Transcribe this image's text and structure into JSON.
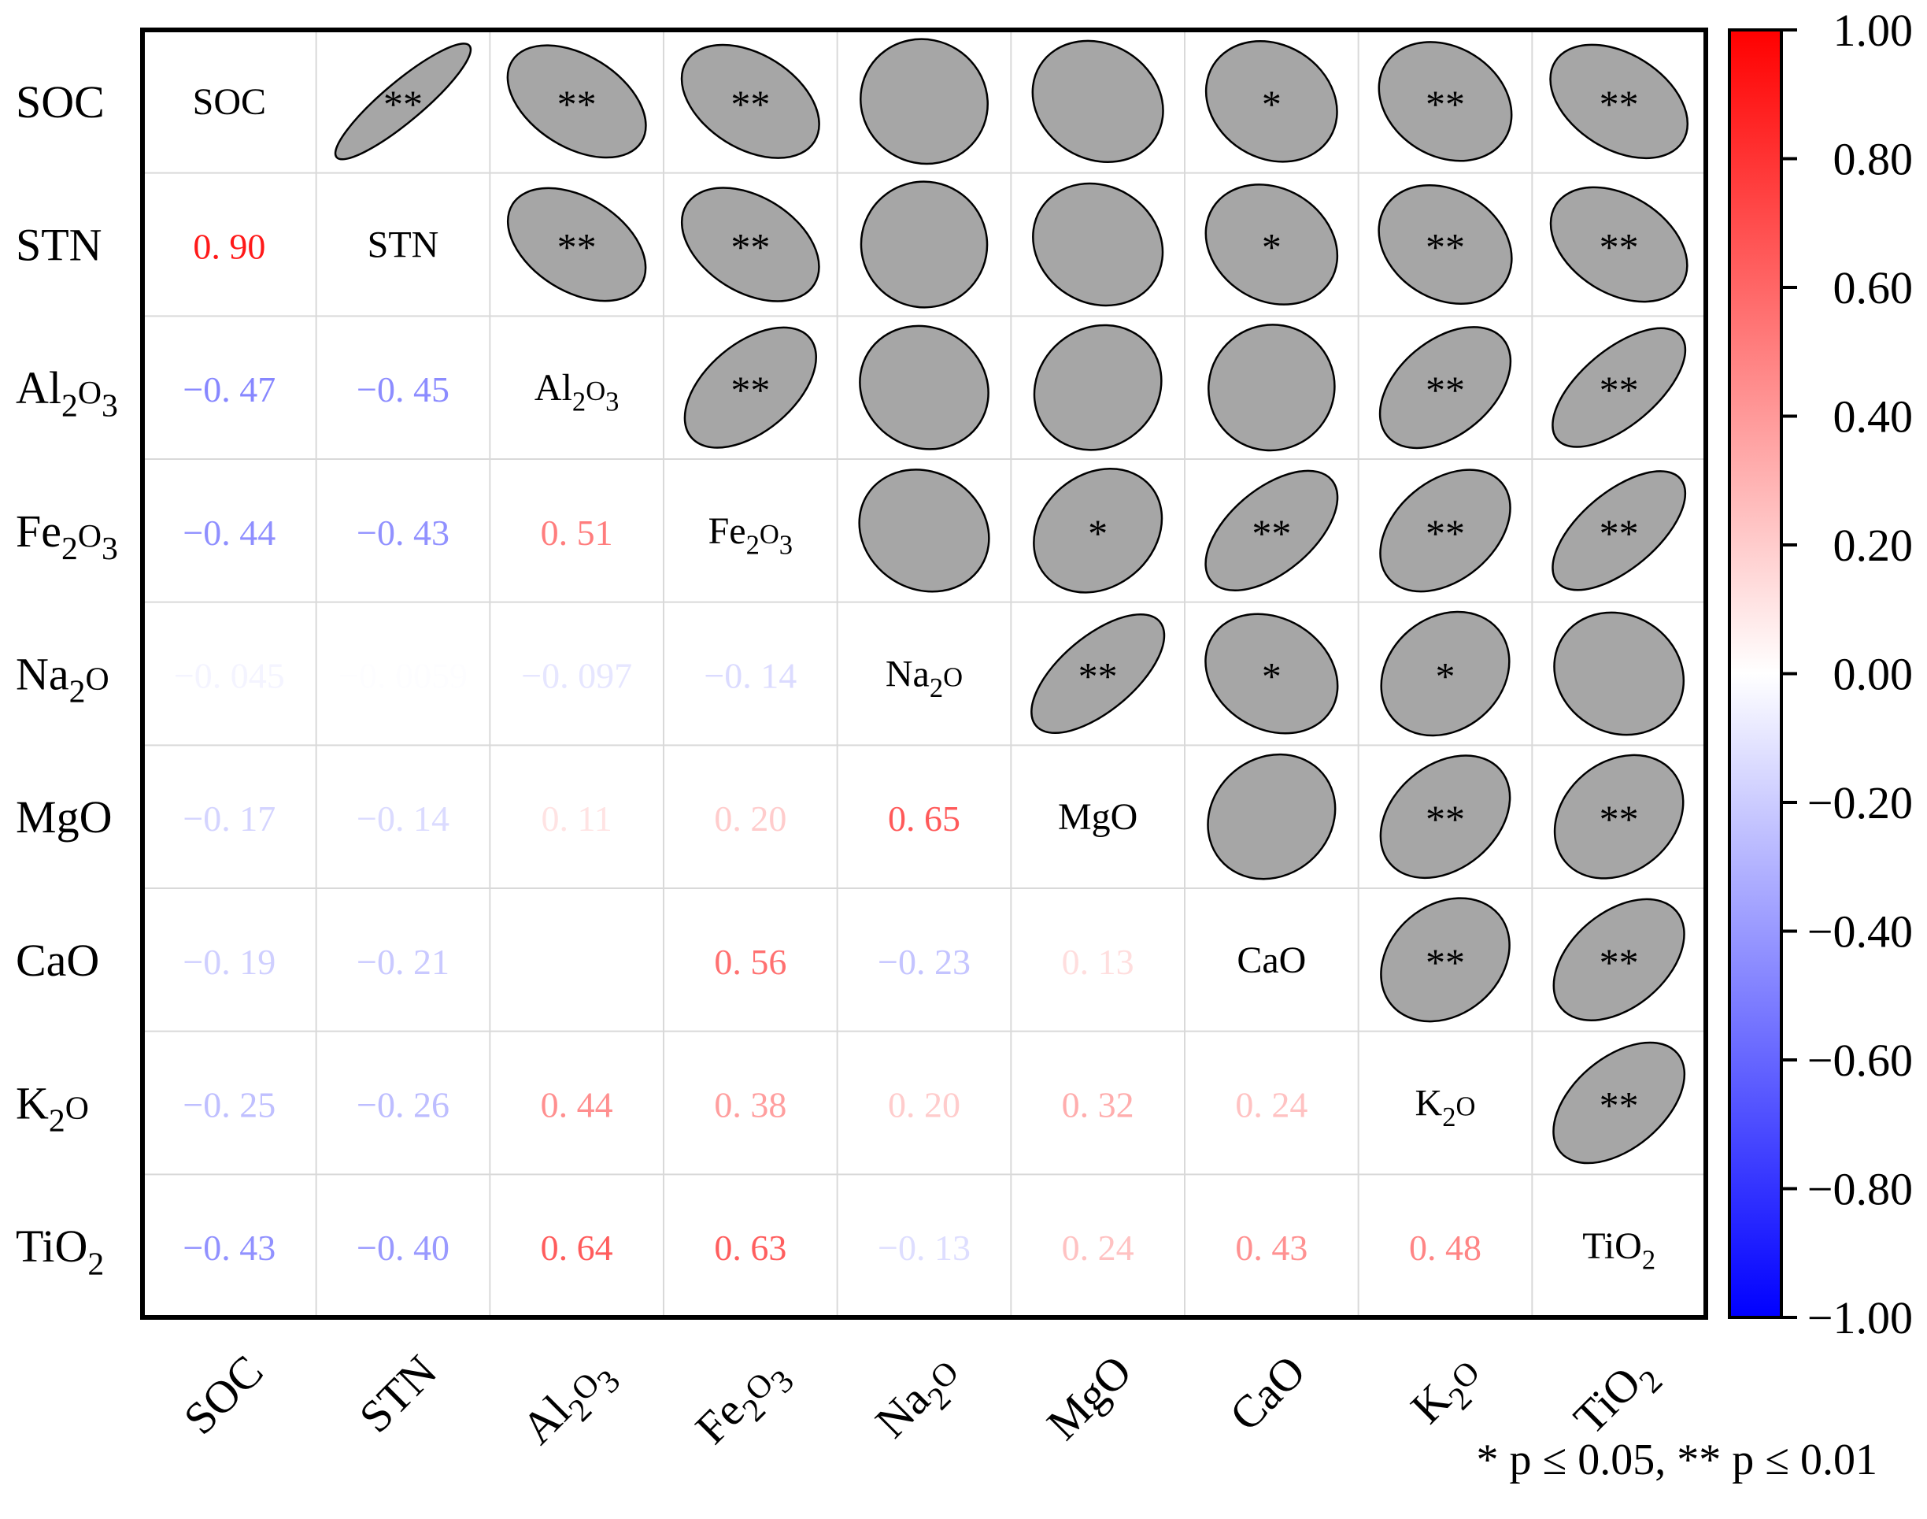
{
  "chart_data": {
    "type": "heatmap",
    "subtype": "correlation-matrix",
    "variables": [
      {
        "base": "SOC",
        "sub": []
      },
      {
        "base": "STN",
        "sub": []
      },
      {
        "base": "Al",
        "sub": [
          "2",
          "O",
          "3"
        ]
      },
      {
        "base": "Fe",
        "sub": [
          "2",
          "O",
          "3"
        ]
      },
      {
        "base": "Na",
        "sub": [
          "2",
          "O"
        ]
      },
      {
        "base": "MgO",
        "sub": []
      },
      {
        "base": "CaO",
        "sub": []
      },
      {
        "base": "K",
        "sub": [
          "2",
          "O"
        ]
      },
      {
        "base": "TiO",
        "sub": [
          "2"
        ]
      }
    ],
    "lower_triangle": [
      {
        "row": 1,
        "col": 0,
        "label": "0. 90",
        "value": 0.9
      },
      {
        "row": 2,
        "col": 0,
        "label": "−0. 47",
        "value": -0.47
      },
      {
        "row": 2,
        "col": 1,
        "label": "−0. 45",
        "value": -0.45
      },
      {
        "row": 3,
        "col": 0,
        "label": "−0. 44",
        "value": -0.44
      },
      {
        "row": 3,
        "col": 1,
        "label": "−0. 43",
        "value": -0.43
      },
      {
        "row": 3,
        "col": 2,
        "label": "0. 51",
        "value": 0.51
      },
      {
        "row": 4,
        "col": 0,
        "label": "−0. 045",
        "value": -0.045
      },
      {
        "row": 4,
        "col": 1,
        "label": "−0. 0059",
        "value": -0.0059
      },
      {
        "row": 4,
        "col": 2,
        "label": "−0. 097",
        "value": -0.097
      },
      {
        "row": 4,
        "col": 3,
        "label": "−0. 14",
        "value": -0.14
      },
      {
        "row": 5,
        "col": 0,
        "label": "−0. 17",
        "value": -0.17
      },
      {
        "row": 5,
        "col": 1,
        "label": "−0. 14",
        "value": -0.14
      },
      {
        "row": 5,
        "col": 2,
        "label": "0. 11",
        "value": 0.11
      },
      {
        "row": 5,
        "col": 3,
        "label": "0. 20",
        "value": 0.2
      },
      {
        "row": 5,
        "col": 4,
        "label": "0. 65",
        "value": 0.65
      },
      {
        "row": 6,
        "col": 0,
        "label": "−0. 19",
        "value": -0.19
      },
      {
        "row": 6,
        "col": 1,
        "label": "−0. 21",
        "value": -0.21
      },
      {
        "row": 6,
        "col": 3,
        "label": "0. 56",
        "value": 0.56
      },
      {
        "row": 6,
        "col": 4,
        "label": "−0. 23",
        "value": -0.23
      },
      {
        "row": 6,
        "col": 5,
        "label": "0. 13",
        "value": 0.13
      },
      {
        "row": 7,
        "col": 0,
        "label": "−0. 25",
        "value": -0.25
      },
      {
        "row": 7,
        "col": 1,
        "label": "−0. 26",
        "value": -0.26
      },
      {
        "row": 7,
        "col": 2,
        "label": "0. 44",
        "value": 0.44
      },
      {
        "row": 7,
        "col": 3,
        "label": "0. 38",
        "value": 0.38
      },
      {
        "row": 7,
        "col": 4,
        "label": "0. 20",
        "value": 0.2
      },
      {
        "row": 7,
        "col": 5,
        "label": "0. 32",
        "value": 0.32
      },
      {
        "row": 7,
        "col": 6,
        "label": "0. 24",
        "value": 0.24
      },
      {
        "row": 8,
        "col": 0,
        "label": "−0. 43",
        "value": -0.43
      },
      {
        "row": 8,
        "col": 1,
        "label": "−0. 40",
        "value": -0.4
      },
      {
        "row": 8,
        "col": 2,
        "label": "0. 64",
        "value": 0.64
      },
      {
        "row": 8,
        "col": 3,
        "label": "0. 63",
        "value": 0.63
      },
      {
        "row": 8,
        "col": 4,
        "label": "−0. 13",
        "value": -0.13
      },
      {
        "row": 8,
        "col": 5,
        "label": "0. 24",
        "value": 0.24
      },
      {
        "row": 8,
        "col": 6,
        "label": "0. 43",
        "value": 0.43
      },
      {
        "row": 8,
        "col": 7,
        "label": "0. 48",
        "value": 0.48
      }
    ],
    "upper_triangle": [
      {
        "row": 0,
        "col": 1,
        "value": 0.9,
        "stars": "**"
      },
      {
        "row": 0,
        "col": 2,
        "value": -0.47,
        "stars": "**"
      },
      {
        "row": 0,
        "col": 3,
        "value": -0.44,
        "stars": "**"
      },
      {
        "row": 0,
        "col": 4,
        "value": -0.045,
        "stars": ""
      },
      {
        "row": 0,
        "col": 5,
        "value": -0.17,
        "stars": ""
      },
      {
        "row": 0,
        "col": 6,
        "value": -0.19,
        "stars": "*"
      },
      {
        "row": 0,
        "col": 7,
        "value": -0.25,
        "stars": "**"
      },
      {
        "row": 0,
        "col": 8,
        "value": -0.43,
        "stars": "**"
      },
      {
        "row": 1,
        "col": 2,
        "value": -0.45,
        "stars": "**"
      },
      {
        "row": 1,
        "col": 3,
        "value": -0.43,
        "stars": "**"
      },
      {
        "row": 1,
        "col": 4,
        "value": -0.0059,
        "stars": ""
      },
      {
        "row": 1,
        "col": 5,
        "value": -0.14,
        "stars": ""
      },
      {
        "row": 1,
        "col": 6,
        "value": -0.21,
        "stars": "*"
      },
      {
        "row": 1,
        "col": 7,
        "value": -0.26,
        "stars": "**"
      },
      {
        "row": 1,
        "col": 8,
        "value": -0.4,
        "stars": "**"
      },
      {
        "row": 2,
        "col": 3,
        "value": 0.51,
        "stars": "**"
      },
      {
        "row": 2,
        "col": 4,
        "value": -0.097,
        "stars": ""
      },
      {
        "row": 2,
        "col": 5,
        "value": 0.11,
        "stars": ""
      },
      {
        "row": 2,
        "col": 6,
        "value": 0.02,
        "stars": ""
      },
      {
        "row": 2,
        "col": 7,
        "value": 0.44,
        "stars": "**"
      },
      {
        "row": 2,
        "col": 8,
        "value": 0.64,
        "stars": "**"
      },
      {
        "row": 3,
        "col": 4,
        "value": -0.14,
        "stars": ""
      },
      {
        "row": 3,
        "col": 5,
        "value": 0.2,
        "stars": "*"
      },
      {
        "row": 3,
        "col": 6,
        "value": 0.56,
        "stars": "**"
      },
      {
        "row": 3,
        "col": 7,
        "value": 0.38,
        "stars": "**"
      },
      {
        "row": 3,
        "col": 8,
        "value": 0.63,
        "stars": "**"
      },
      {
        "row": 4,
        "col": 5,
        "value": 0.65,
        "stars": "**"
      },
      {
        "row": 4,
        "col": 6,
        "value": -0.23,
        "stars": "*"
      },
      {
        "row": 4,
        "col": 7,
        "value": 0.2,
        "stars": "*"
      },
      {
        "row": 4,
        "col": 8,
        "value": -0.13,
        "stars": ""
      },
      {
        "row": 5,
        "col": 6,
        "value": 0.13,
        "stars": ""
      },
      {
        "row": 5,
        "col": 7,
        "value": 0.32,
        "stars": "**"
      },
      {
        "row": 5,
        "col": 8,
        "value": 0.24,
        "stars": "**"
      },
      {
        "row": 6,
        "col": 7,
        "value": 0.24,
        "stars": "**"
      },
      {
        "row": 6,
        "col": 8,
        "value": 0.43,
        "stars": "**"
      },
      {
        "row": 7,
        "col": 8,
        "value": 0.48,
        "stars": "**"
      }
    ],
    "colorbar": {
      "min": -1.0,
      "max": 1.0,
      "ticks": [
        "1.00",
        "0.80",
        "0.60",
        "0.40",
        "0.20",
        "0.00",
        "−0.20",
        "−0.40",
        "−0.60",
        "−0.80",
        "−1.00"
      ],
      "colors": {
        "negative": "#0000ff",
        "zero": "#ffffff",
        "positive": "#ff0000"
      }
    },
    "colors": {
      "ellipse_fill": "#a6a6a6",
      "ellipse_stroke": "#000000",
      "grid": "#d9d9d9",
      "frame": "#000000"
    },
    "footnote": "* p ≤ 0.05, ** p ≤ 0.01"
  }
}
